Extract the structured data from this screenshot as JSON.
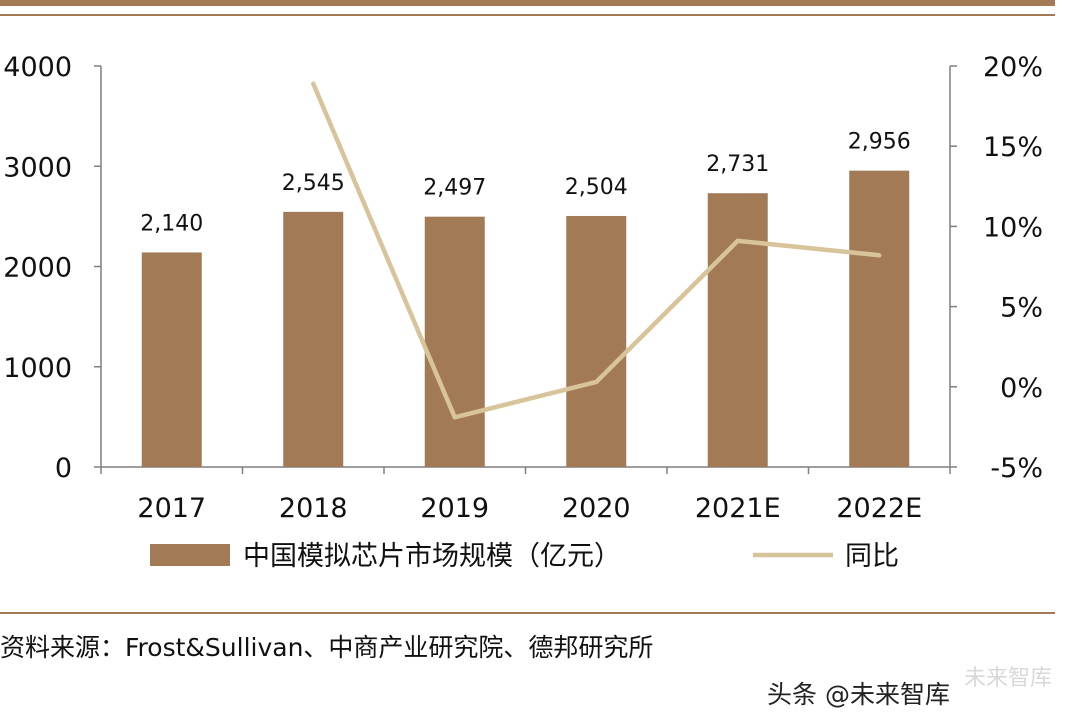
{
  "chart_data": {
    "type": "bar+line",
    "categories": [
      "2017",
      "2018",
      "2019",
      "2020",
      "2021E",
      "2022E"
    ],
    "series": [
      {
        "name": "中国模拟芯片市场规模（亿元）",
        "type": "bar",
        "axis": "left",
        "values": [
          2140,
          2545,
          2497,
          2504,
          2731,
          2956
        ],
        "labels": [
          "2,140",
          "2,545",
          "2,497",
          "2,504",
          "2,731",
          "2,956"
        ],
        "color": "#a27a55"
      },
      {
        "name": "同比",
        "type": "line",
        "axis": "right",
        "values": [
          null,
          18.9,
          -1.9,
          0.3,
          9.1,
          8.2
        ],
        "color": "#d8c49a"
      }
    ],
    "y_left": {
      "min": 0,
      "max": 4000,
      "ticks": [
        0,
        1000,
        2000,
        3000,
        4000
      ],
      "tick_labels": [
        "0",
        "1000",
        "2000",
        "3000",
        "4000"
      ]
    },
    "y_right": {
      "min": -5,
      "max": 20,
      "ticks": [
        -5,
        0,
        5,
        10,
        15,
        20
      ],
      "tick_labels": [
        "-5%",
        "0%",
        "5%",
        "10%",
        "15%",
        "20%"
      ]
    },
    "legend_position": "bottom",
    "grid": false
  },
  "source_text": "资料来源：Frost&Sullivan、中商产业研究院、德邦研究所",
  "watermark": {
    "main": "头条 @未来智库",
    "sub": "未来智库"
  }
}
